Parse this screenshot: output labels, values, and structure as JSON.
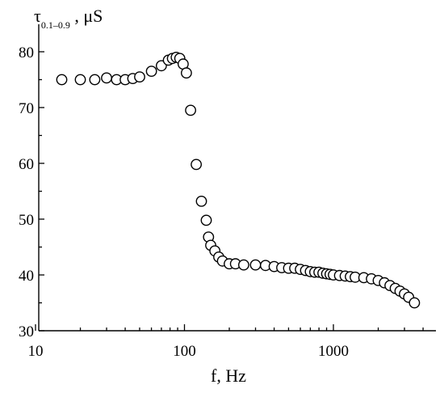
{
  "chart_data": {
    "type": "scatter",
    "title": "",
    "xlabel": "f, Hz",
    "ylabel_main": "τ",
    "ylabel_sub": "0.1–0.9",
    "ylabel_unit": " , μS",
    "x_scale": "log",
    "xlim": [
      10,
      4000
    ],
    "ylim": [
      30,
      85
    ],
    "x_ticks": [
      10,
      100,
      1000
    ],
    "x_tick_labels": [
      "10",
      "100",
      "1000"
    ],
    "y_ticks": [
      30,
      40,
      50,
      60,
      70,
      80
    ],
    "y_tick_labels": [
      "30",
      "40",
      "50",
      "60",
      "70",
      "80"
    ],
    "grid": false,
    "legend": "none",
    "marker": "open-circle",
    "series": [
      {
        "points": [
          [
            15,
            75.0
          ],
          [
            20,
            75.0
          ],
          [
            25,
            75.0
          ],
          [
            30,
            75.3
          ],
          [
            35,
            75.0
          ],
          [
            40,
            75.0
          ],
          [
            45,
            75.2
          ],
          [
            50,
            75.5
          ],
          [
            60,
            76.5
          ],
          [
            70,
            77.5
          ],
          [
            78,
            78.5
          ],
          [
            83,
            78.8
          ],
          [
            88,
            79.0
          ],
          [
            93,
            78.8
          ],
          [
            98,
            77.8
          ],
          [
            103,
            76.2
          ],
          [
            110,
            69.5
          ],
          [
            120,
            59.8
          ],
          [
            130,
            53.2
          ],
          [
            140,
            49.8
          ],
          [
            145,
            46.8
          ],
          [
            150,
            45.3
          ],
          [
            160,
            44.3
          ],
          [
            170,
            43.2
          ],
          [
            180,
            42.5
          ],
          [
            200,
            42.0
          ],
          [
            220,
            42.0
          ],
          [
            250,
            41.8
          ],
          [
            300,
            41.8
          ],
          [
            350,
            41.7
          ],
          [
            400,
            41.5
          ],
          [
            450,
            41.3
          ],
          [
            500,
            41.2
          ],
          [
            550,
            41.2
          ],
          [
            600,
            41.0
          ],
          [
            650,
            40.8
          ],
          [
            700,
            40.6
          ],
          [
            750,
            40.5
          ],
          [
            800,
            40.5
          ],
          [
            850,
            40.3
          ],
          [
            900,
            40.2
          ],
          [
            950,
            40.1
          ],
          [
            1000,
            40.0
          ],
          [
            1100,
            39.9
          ],
          [
            1200,
            39.8
          ],
          [
            1300,
            39.7
          ],
          [
            1400,
            39.6
          ],
          [
            1600,
            39.5
          ],
          [
            1800,
            39.3
          ],
          [
            2000,
            39.0
          ],
          [
            2200,
            38.6
          ],
          [
            2400,
            38.1
          ],
          [
            2600,
            37.6
          ],
          [
            2800,
            37.1
          ],
          [
            3000,
            36.6
          ],
          [
            3200,
            36.0
          ],
          [
            3500,
            35.0
          ]
        ]
      }
    ]
  }
}
